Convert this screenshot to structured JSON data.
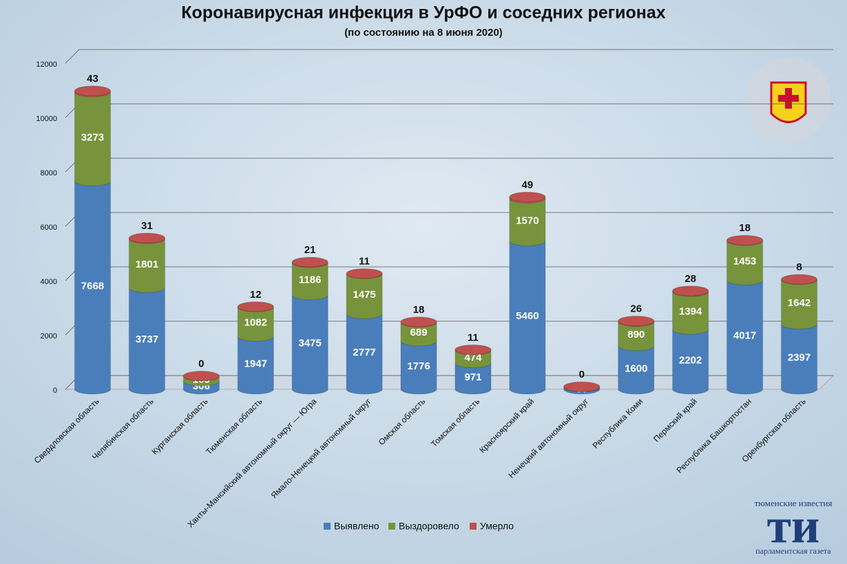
{
  "chart_data": {
    "type": "stacked_bar",
    "title": "Коронавирусная инфекция в УрФО и соседних регионах",
    "subtitle": "(по состоянию на 8 июня 2020)",
    "categories": [
      "Свердловская область",
      "Челябинская область",
      "Курганская область",
      "Тюменская область",
      "Ханты-Мансийский автономный округ — Югра",
      "Ямало-Ненецкий автономный округ",
      "Омская область",
      "Томская область",
      "Красноярский край",
      "Ненецкий автономный округ",
      "Республика Коми",
      "Пермский край",
      "Республика Башкортостан",
      "Оренбургская область"
    ],
    "series": [
      {
        "name": "Выявлено",
        "color": "#4a7ebb",
        "values": [
          7668,
          3737,
          306,
          1947,
          3475,
          2777,
          1776,
          971,
          5460,
          80,
          1600,
          2202,
          4017,
          2397
        ]
      },
      {
        "name": "Выздоровело",
        "color": "#77933c",
        "values": [
          3273,
          1801,
          183,
          1082,
          1186,
          1475,
          689,
          474,
          1570,
          16,
          890,
          1394,
          1453,
          1642
        ]
      },
      {
        "name": "Умерло",
        "color": "#c0504d",
        "values": [
          43,
          31,
          0,
          12,
          21,
          11,
          18,
          11,
          49,
          0,
          26,
          28,
          18,
          8
        ]
      }
    ],
    "ylim": [
      0,
      12000
    ],
    "yticks": [
      0,
      2000,
      4000,
      6000,
      8000,
      10000,
      12000
    ],
    "grid": true,
    "legend": "bottom"
  },
  "branding": {
    "top": "тюменские известия",
    "mark": "ти",
    "bottom": "парламентская газета"
  }
}
